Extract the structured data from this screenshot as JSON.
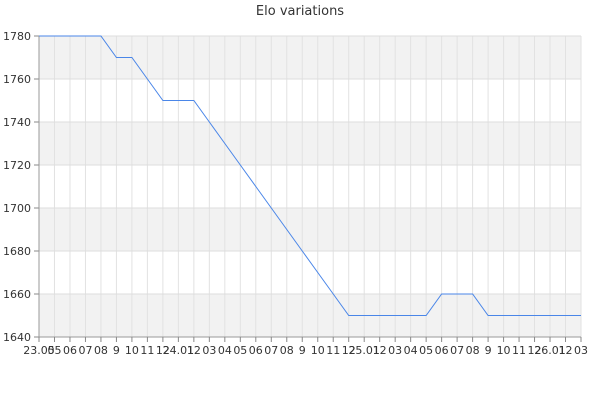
{
  "chart_data": {
    "type": "line",
    "title": "Elo variations",
    "xlabel": "",
    "ylabel": "",
    "ylim": [
      1640,
      1780
    ],
    "yticks": [
      1640,
      1660,
      1680,
      1700,
      1720,
      1740,
      1760,
      1780
    ],
    "x_tick_labels": [
      "23.05",
      "05",
      "06",
      "07",
      "08",
      "9",
      "10",
      "11",
      "12",
      "24.01",
      "12",
      "03",
      "04",
      "05",
      "06",
      "07",
      "08",
      "9",
      "10",
      "11",
      "12",
      "25.01",
      "12",
      "03",
      "04",
      "05",
      "06",
      "07",
      "08",
      "9",
      "10",
      "11",
      "12",
      "26.01",
      "12",
      "03"
    ],
    "grid": true,
    "alternating_bands": true,
    "line_color": "#4a86e8",
    "series": [
      {
        "name": "",
        "values": [
          1780,
          1780,
          1780,
          1780,
          1780,
          1770,
          1770,
          1760,
          1750,
          1750,
          1750,
          1740,
          1730,
          1720,
          1710,
          1700,
          1690,
          1680,
          1670,
          1660,
          1650,
          1650,
          1650,
          1650,
          1650,
          1650,
          1660,
          1660,
          1660,
          1650,
          1650,
          1650,
          1650,
          1650,
          1650,
          1650
        ]
      }
    ]
  }
}
